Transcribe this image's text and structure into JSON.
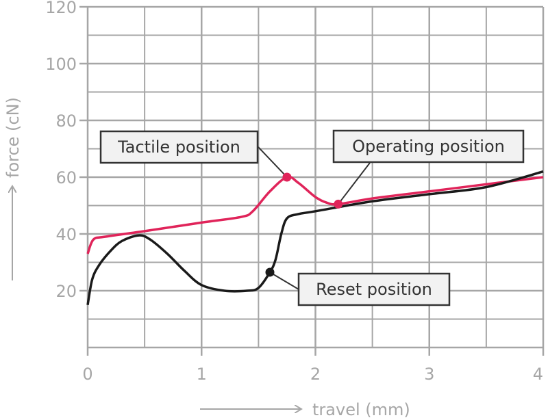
{
  "chart_data": {
    "type": "line",
    "xlabel": "travel (mm)",
    "ylabel": "force (cN)",
    "xlim": [
      0,
      4
    ],
    "ylim": [
      0,
      120
    ],
    "x_ticks": [
      "0",
      "1",
      "2",
      "3",
      "4"
    ],
    "y_ticks": [
      "20",
      "40",
      "60",
      "80",
      "100",
      "120"
    ],
    "grid": true,
    "colors": {
      "grid": "#a6a6a6",
      "red": "#e0245a",
      "black": "#1a1a1a",
      "callout_border": "#333333",
      "callout_fill": "#f2f2f2"
    },
    "series": [
      {
        "color": "#e0245a",
        "x": [
          0,
          0.05,
          0.15,
          0.5,
          1.0,
          1.35,
          1.45,
          1.6,
          1.75,
          1.85,
          2.0,
          2.1,
          2.2,
          2.5,
          3.0,
          3.5,
          4.0
        ],
        "y": [
          33,
          38,
          39,
          41,
          44,
          46,
          48,
          55,
          60,
          58,
          53,
          51,
          50.5,
          52.5,
          55,
          57.5,
          60
        ]
      },
      {
        "color": "#1a1a1a",
        "x": [
          0,
          0.04,
          0.1,
          0.2,
          0.3,
          0.45,
          0.55,
          0.7,
          0.85,
          1.0,
          1.2,
          1.4,
          1.5,
          1.6,
          1.65,
          1.7,
          1.75,
          1.85,
          2.0,
          2.5,
          3.0,
          3.5,
          4.0
        ],
        "y": [
          15,
          24,
          29,
          34,
          37.5,
          39.5,
          38,
          33,
          27,
          22,
          20,
          20,
          21,
          26.5,
          31,
          40,
          45.5,
          47,
          48,
          51.5,
          54,
          56.5,
          62
        ]
      }
    ],
    "annotations": [
      {
        "text": "Tactile position",
        "x": 1.75,
        "y": 60,
        "marker_color": "#e0245a"
      },
      {
        "text": "Operating position",
        "x": 2.2,
        "y": 50.5,
        "marker_color": "#e0245a"
      },
      {
        "text": "Reset position",
        "x": 1.6,
        "y": 26.5,
        "marker_color": "#1a1a1a"
      }
    ]
  }
}
